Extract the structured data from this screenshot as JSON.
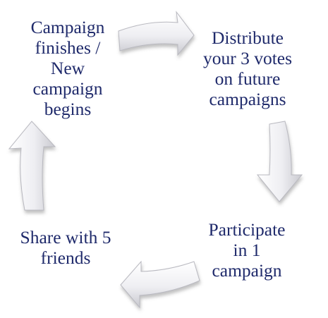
{
  "cycle": {
    "steps": [
      {
        "id": "campaign-finishes",
        "text": "Campaign\nfinishes /\nNew\ncampaign\nbegins"
      },
      {
        "id": "distribute-votes",
        "text": "Distribute\nyour 3 votes\non future\ncampaigns"
      },
      {
        "id": "participate",
        "text": "Participate\nin 1\ncampaign"
      },
      {
        "id": "share",
        "text": "Share with 5\nfriends"
      }
    ],
    "arrow_color": "#e9e9ee",
    "text_color": "#1f2a6b"
  }
}
